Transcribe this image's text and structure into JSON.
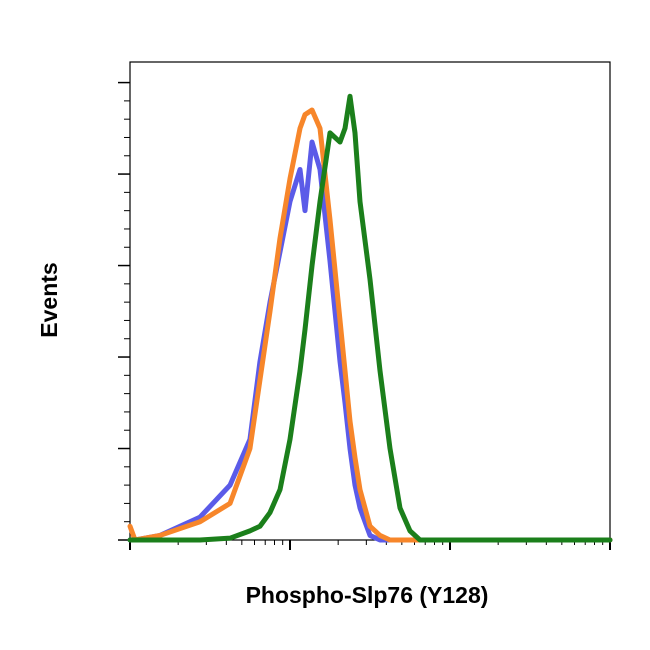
{
  "chart_data": {
    "type": "line",
    "xlabel": "Phospho-Slp76 (Y128)",
    "ylabel": "Events",
    "x": [
      1,
      1.075,
      1.54,
      2.74,
      4.22,
      5.62,
      6.49,
      7.5,
      8.66,
      10,
      11.55,
      12.41,
      13.73,
      15.4,
      17.78,
      20.54,
      22.07,
      23.71,
      25.48,
      27.38,
      31.62,
      36.52,
      42.17,
      48.7,
      56.23,
      64.94,
      1000
    ],
    "series": [
      {
        "name": "Blue",
        "color": "#5b5be8",
        "values": [
          0,
          0,
          1,
          5,
          12,
          22,
          39,
          52,
          63,
          74,
          81,
          72,
          87,
          81,
          61,
          39,
          30,
          20,
          12,
          7,
          1,
          0,
          0,
          0,
          0,
          0,
          0
        ]
      },
      {
        "name": "Orange",
        "color": "#f7862a",
        "values": [
          3,
          0,
          1,
          4,
          8,
          20,
          35,
          50,
          66,
          79,
          90,
          93,
          94,
          90,
          70,
          48,
          37,
          26,
          18,
          11,
          3,
          1,
          0,
          0,
          0,
          0,
          0
        ]
      },
      {
        "name": "Green",
        "color": "#1b7f1b",
        "values": [
          0,
          0,
          0,
          0,
          0.4,
          2,
          3,
          6,
          11,
          22,
          37,
          46,
          60,
          74,
          89,
          87,
          90,
          97,
          89,
          74,
          57,
          37,
          20,
          7,
          2,
          0,
          0
        ]
      }
    ],
    "log_x": true,
    "xlim": [
      1,
      1000
    ],
    "xticks": [
      1,
      10,
      100,
      1000
    ],
    "ylim": [
      0,
      104.5
    ],
    "yticks": [
      0,
      20,
      40,
      60,
      80,
      100
    ]
  }
}
